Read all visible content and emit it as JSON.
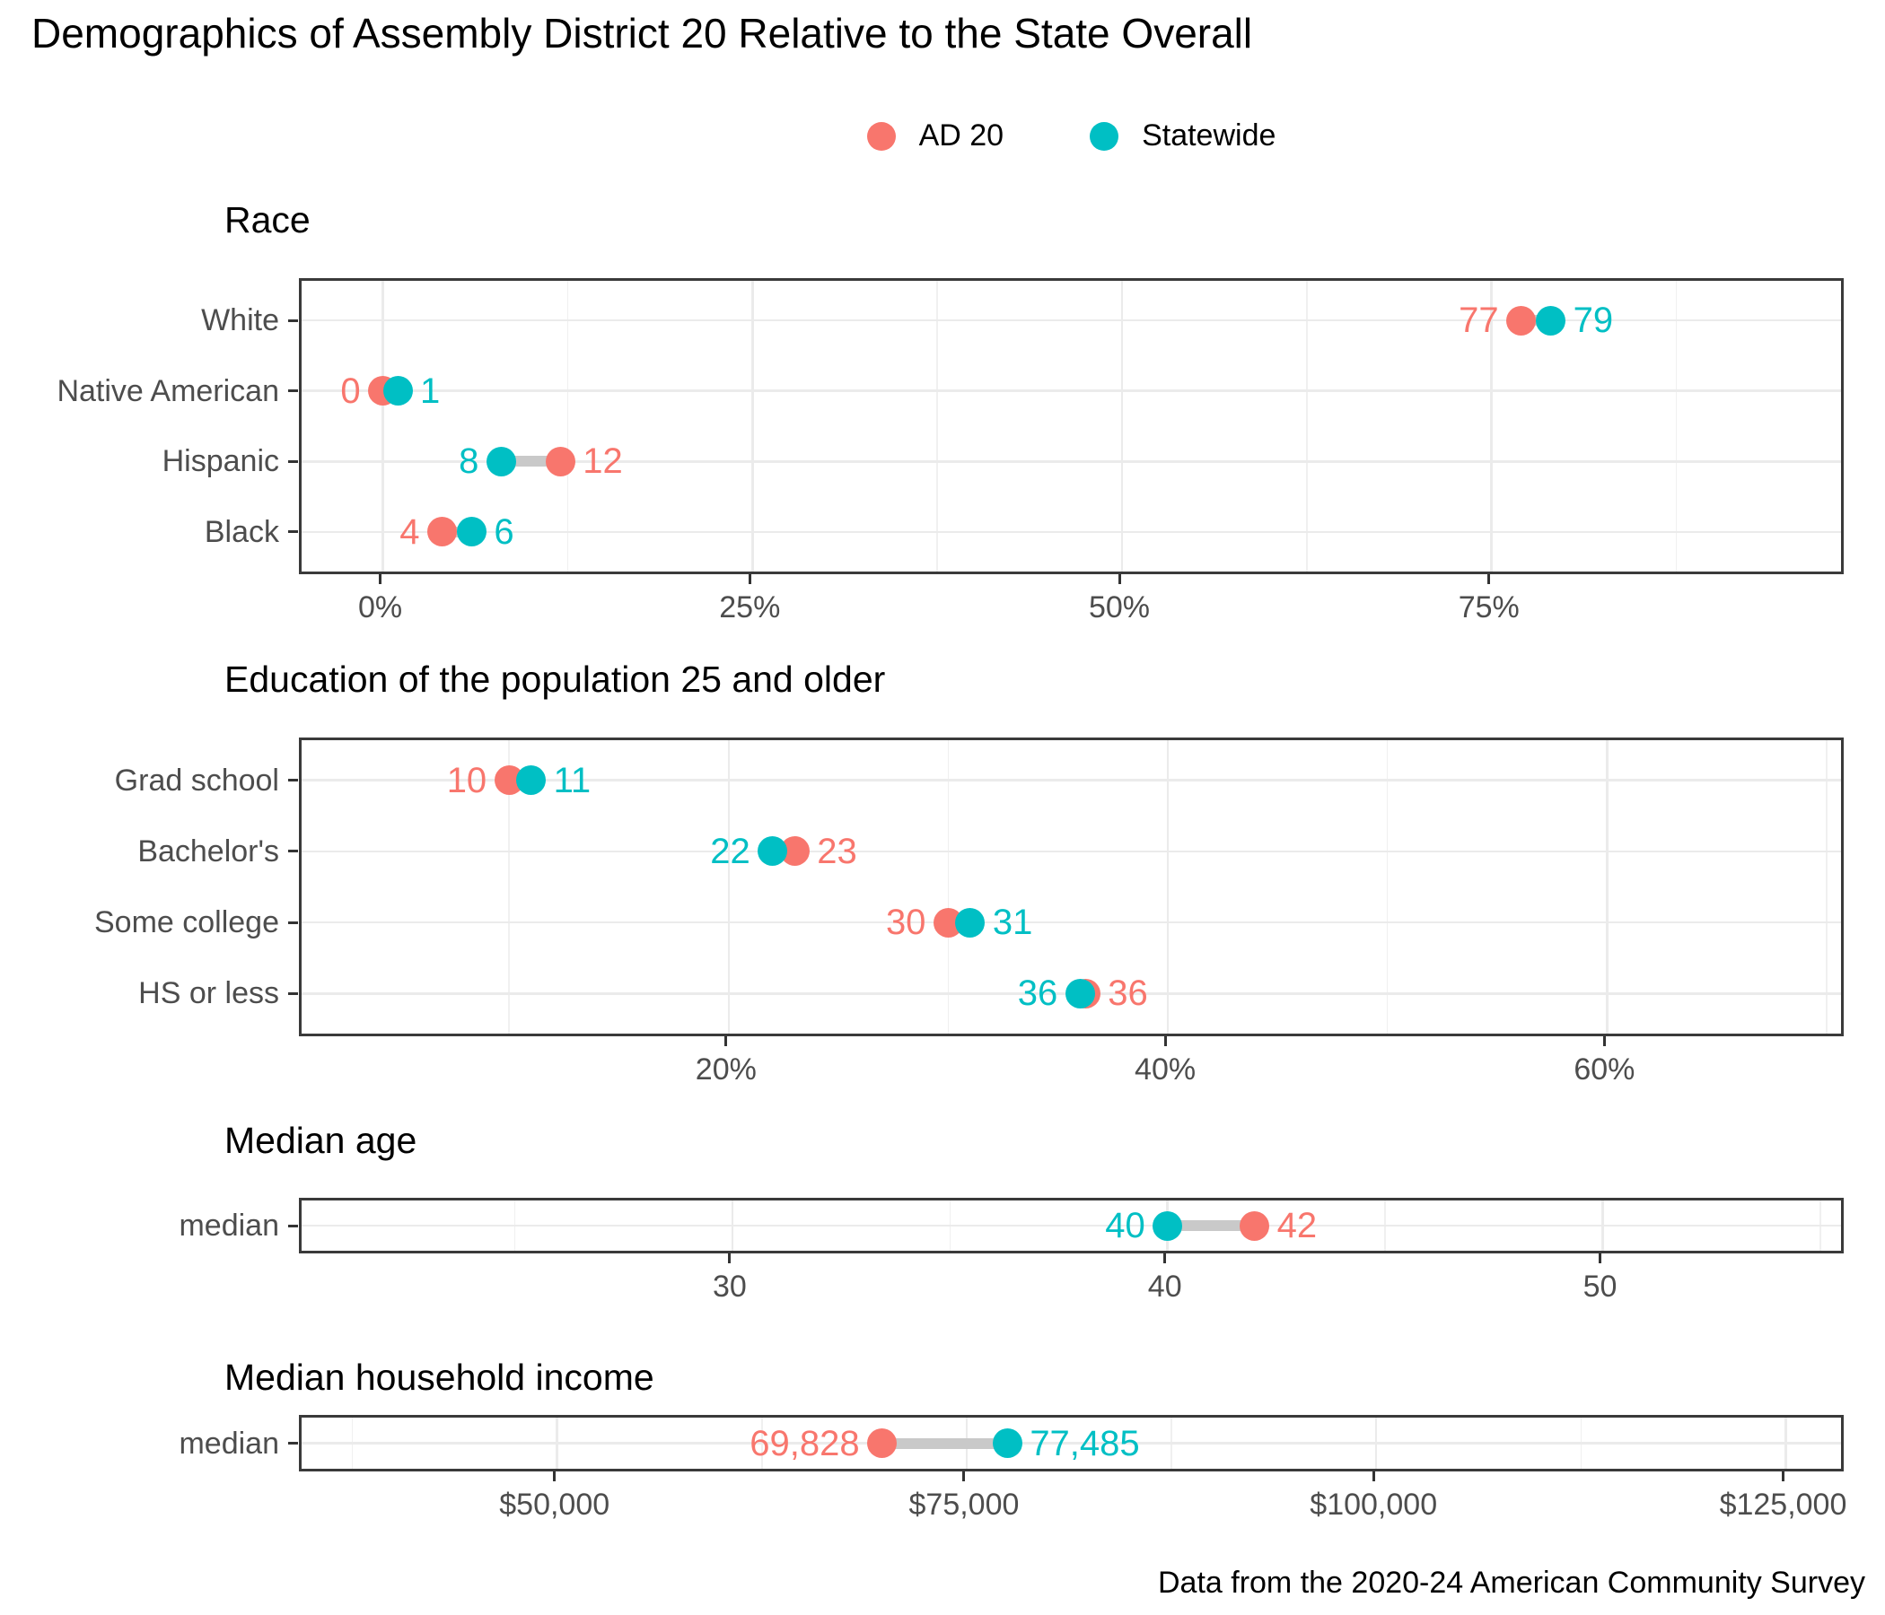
{
  "title": "Demographics of Assembly District 20 Relative to the State Overall",
  "caption": "Data from the 2020-24 American Community Survey",
  "legend": {
    "items": [
      {
        "label": "AD 20",
        "color": "#F8766D"
      },
      {
        "label": "Statewide",
        "color": "#00BFC4"
      }
    ]
  },
  "colors": {
    "ad20": "#F8766D",
    "statewide": "#00BFC4",
    "segment": "#c9c9c9",
    "grid": "#ebebeb",
    "panel_border": "#3a3a3a",
    "axis_text": "#4d4d4d"
  },
  "chart_data": [
    {
      "type": "scatter",
      "variant": "dumbbell",
      "title": "Race",
      "categories": [
        "White",
        "Native American",
        "Hispanic",
        "Black"
      ],
      "series": [
        {
          "name": "AD 20",
          "color": "#F8766D",
          "values": [
            77,
            0,
            12,
            4
          ],
          "labels": [
            "77",
            "0",
            "12",
            "4"
          ]
        },
        {
          "name": "Statewide",
          "color": "#00BFC4",
          "values": [
            79,
            1,
            8,
            6
          ],
          "labels": [
            "79",
            "1",
            "8",
            "6"
          ]
        }
      ],
      "x_domain": [
        -5.5,
        99
      ],
      "x_ticks": [
        {
          "v": 0,
          "label": "0%"
        },
        {
          "v": 25,
          "label": "25%"
        },
        {
          "v": 50,
          "label": "50%"
        },
        {
          "v": 75,
          "label": "75%"
        }
      ],
      "grid": true,
      "legend_position": "top"
    },
    {
      "type": "scatter",
      "variant": "dumbbell",
      "title": "Education of the population 25 and older",
      "categories": [
        "Grad school",
        "Bachelor's",
        "Some college",
        "HS or less"
      ],
      "series": [
        {
          "name": "AD 20",
          "color": "#F8766D",
          "values": [
            10,
            23,
            30,
            36
          ],
          "labels": [
            "10",
            "23",
            "30",
            "36"
          ]
        },
        {
          "name": "Statewide",
          "color": "#00BFC4",
          "values": [
            11,
            22,
            31,
            36
          ],
          "labels": [
            "11",
            "22",
            "31",
            "36"
          ]
        }
      ],
      "x_domain": [
        0.55,
        70.9
      ],
      "x_ticks": [
        {
          "v": 20,
          "label": "20%"
        },
        {
          "v": 40,
          "label": "40%"
        },
        {
          "v": 60,
          "label": "60%"
        }
      ],
      "grid": true,
      "legend_position": "none"
    },
    {
      "type": "scatter",
      "variant": "dumbbell",
      "title": "Median age",
      "categories": [
        "median"
      ],
      "series": [
        {
          "name": "AD 20",
          "color": "#F8766D",
          "values": [
            42
          ],
          "labels": [
            "42"
          ]
        },
        {
          "name": "Statewide",
          "color": "#00BFC4",
          "values": [
            40
          ],
          "labels": [
            "40"
          ]
        }
      ],
      "x_domain": [
        20.1,
        55.6
      ],
      "x_ticks": [
        {
          "v": 30,
          "label": "30"
        },
        {
          "v": 40,
          "label": "40"
        },
        {
          "v": 50,
          "label": "50"
        }
      ],
      "grid": true,
      "legend_position": "none"
    },
    {
      "type": "scatter",
      "variant": "dumbbell",
      "title": "Median household income",
      "categories": [
        "median"
      ],
      "series": [
        {
          "name": "AD 20",
          "color": "#F8766D",
          "values": [
            69828
          ],
          "labels": [
            "69,828"
          ]
        },
        {
          "name": "Statewide",
          "color": "#00BFC4",
          "values": [
            77485
          ],
          "labels": [
            "77,485"
          ]
        }
      ],
      "x_domain": [
        34400,
        128700
      ],
      "x_ticks": [
        {
          "v": 50000,
          "label": "$50,000"
        },
        {
          "v": 75000,
          "label": "$75,000"
        },
        {
          "v": 100000,
          "label": "$100,000"
        },
        {
          "v": 125000,
          "label": "$125,000"
        }
      ],
      "grid": true,
      "legend_position": "none"
    }
  ]
}
